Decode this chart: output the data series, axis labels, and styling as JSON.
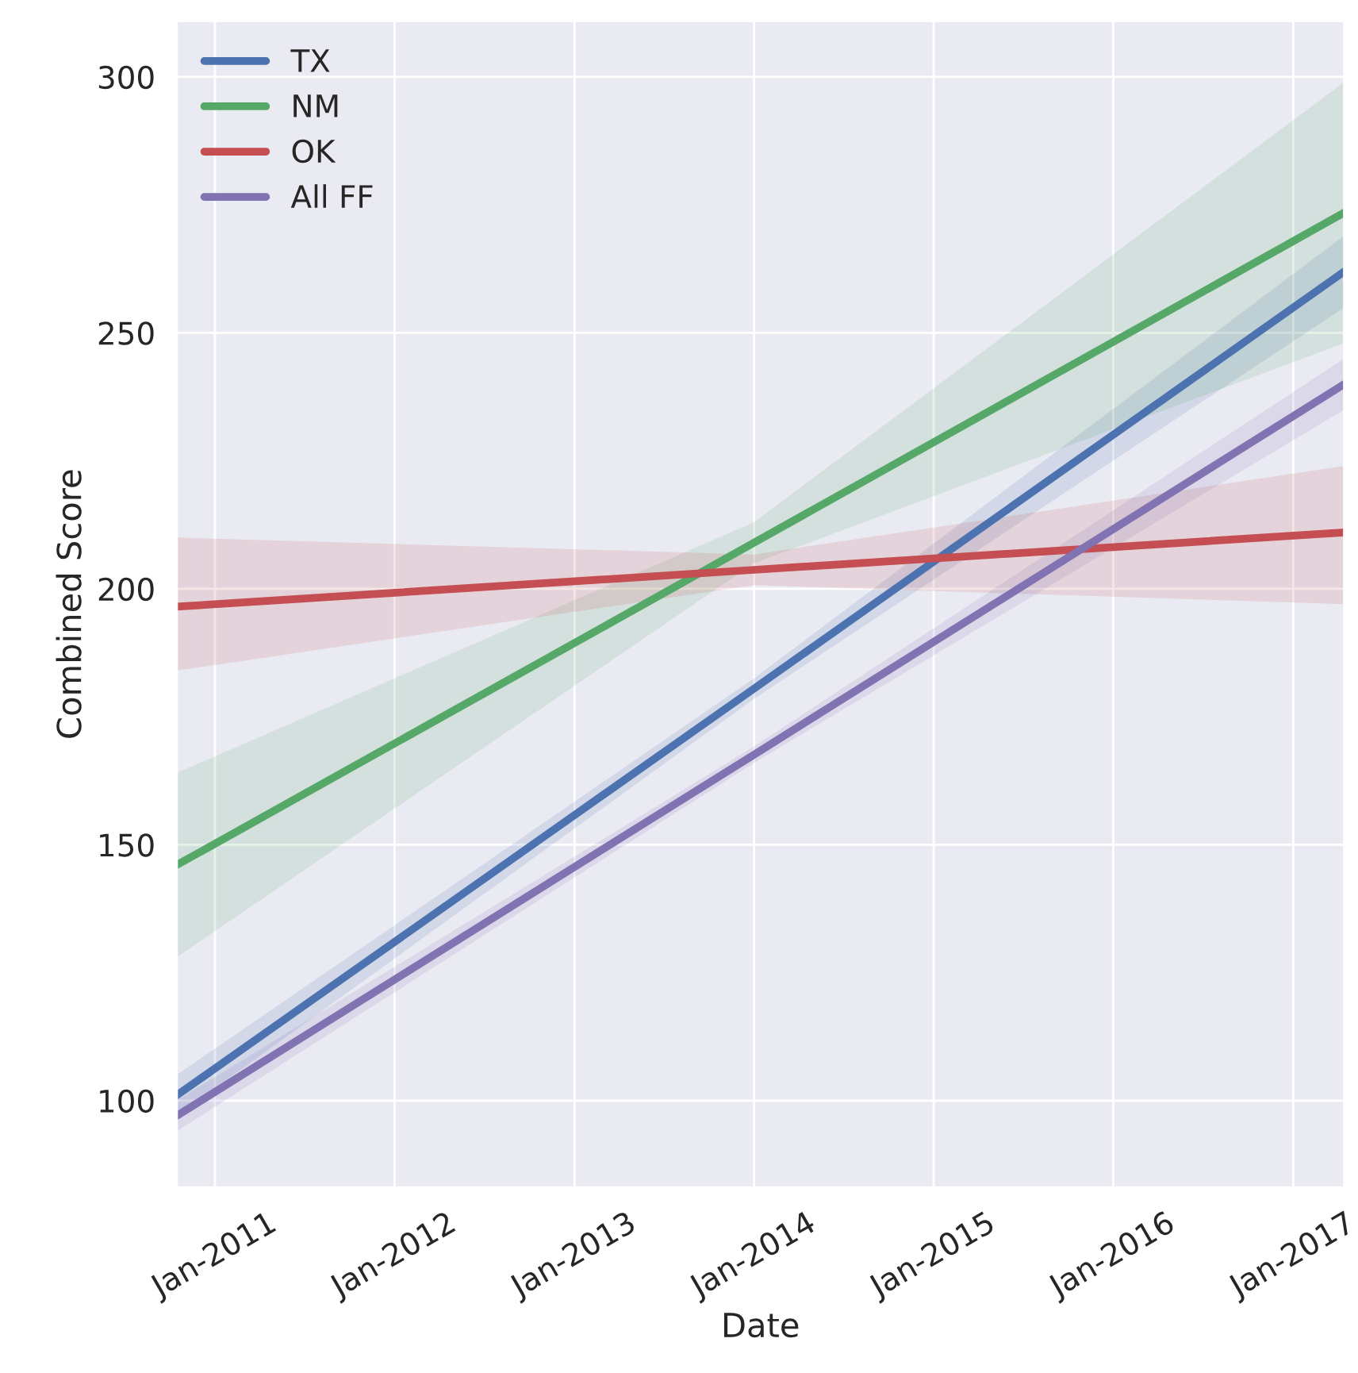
{
  "chart_data": {
    "type": "line",
    "xlabel": "Date",
    "ylabel": "Combined Score",
    "x": [
      "2010-10-15",
      "2014-01-01",
      "2017-04-15"
    ],
    "series": [
      {
        "name": "TX",
        "color": "#4c72b0",
        "values": [
          101,
          180.5,
          262
        ],
        "lower": [
          97,
          178.5,
          255
        ],
        "upper": [
          105,
          182.5,
          269
        ]
      },
      {
        "name": "NM",
        "color": "#55a868",
        "values": [
          146,
          209,
          273.5
        ],
        "lower": [
          128,
          205,
          248
        ],
        "upper": [
          164,
          213,
          299
        ]
      },
      {
        "name": "OK",
        "color": "#c44e52",
        "values": [
          196.5,
          203.7,
          211
        ],
        "lower": [
          184,
          200.7,
          197
        ],
        "upper": [
          210,
          206.7,
          224
        ]
      },
      {
        "name": "All FF",
        "color": "#8172b2",
        "values": [
          97,
          167.6,
          240
        ],
        "lower": [
          94,
          166,
          235
        ],
        "upper": [
          100,
          169.2,
          245
        ]
      }
    ],
    "xlim": [
      "2010-10-15",
      "2017-04-15"
    ],
    "xticks": [
      {
        "value": "2011-01-01",
        "label": "Jan-2011"
      },
      {
        "value": "2012-01-01",
        "label": "Jan-2012"
      },
      {
        "value": "2013-01-01",
        "label": "Jan-2013"
      },
      {
        "value": "2014-01-01",
        "label": "Jan-2014"
      },
      {
        "value": "2015-01-01",
        "label": "Jan-2015"
      },
      {
        "value": "2016-01-01",
        "label": "Jan-2016"
      },
      {
        "value": "2017-01-01",
        "label": "Jan-2017"
      }
    ],
    "ylim": [
      83,
      311
    ],
    "yticks": [
      100,
      150,
      200,
      250,
      300
    ],
    "grid": true,
    "legend": "top left",
    "marker": "none",
    "line_style": "solid"
  }
}
